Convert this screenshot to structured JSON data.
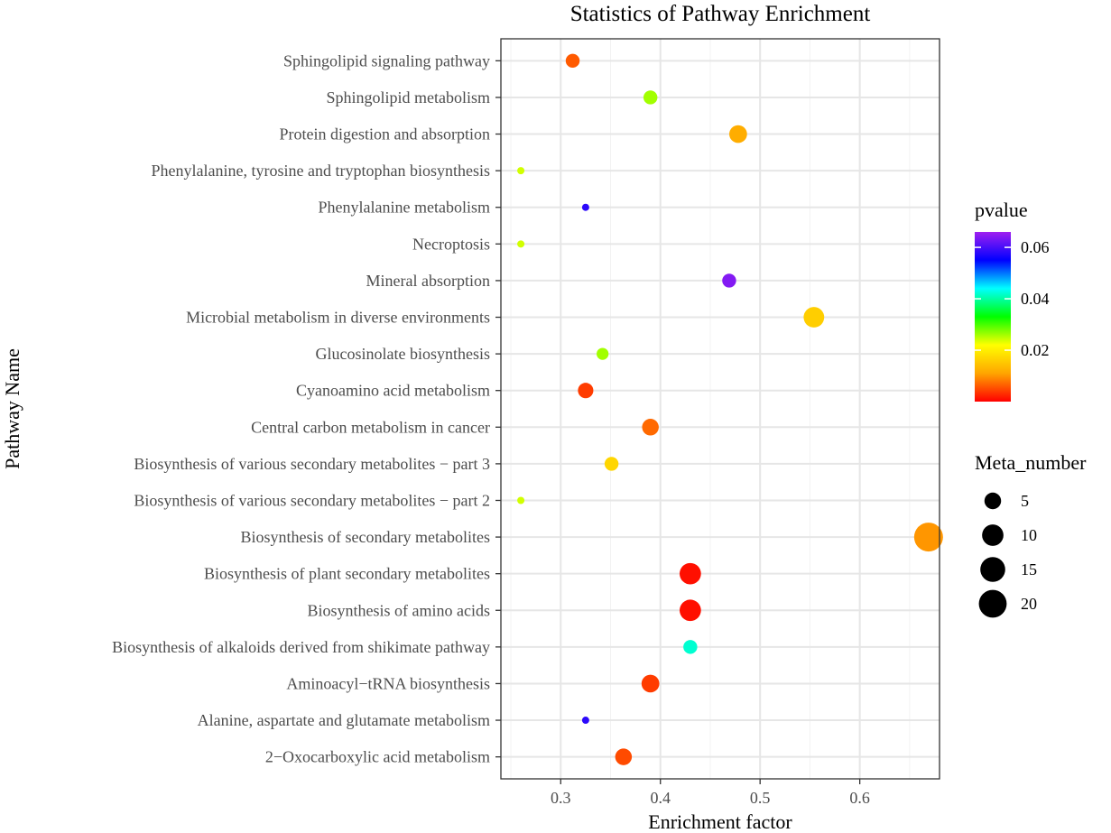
{
  "chart_data": {
    "type": "scatter",
    "title": "Statistics of Pathway Enrichment",
    "xlabel": "Enrichment factor",
    "ylabel": "Pathway Name",
    "xlim": [
      0.24,
      0.68
    ],
    "xticks": [
      0.3,
      0.4,
      0.5,
      0.6
    ],
    "xtick_labels": [
      "0.3",
      "0.4",
      "0.5",
      "0.6"
    ],
    "grid": true,
    "points": [
      {
        "pathway": "Sphingolipid signaling pathway",
        "enrichment": 0.312,
        "pvalue": 0.006,
        "meta_number": 3
      },
      {
        "pathway": "Sphingolipid metabolism",
        "enrichment": 0.39,
        "pvalue": 0.026,
        "meta_number": 3
      },
      {
        "pathway": "Protein digestion and absorption",
        "enrichment": 0.478,
        "pvalue": 0.012,
        "meta_number": 6
      },
      {
        "pathway": "Phenylalanine, tyrosine and tryptophan biosynthesis",
        "enrichment": 0.26,
        "pvalue": 0.024,
        "meta_number": 1
      },
      {
        "pathway": "Phenylalanine metabolism",
        "enrichment": 0.325,
        "pvalue": 0.058,
        "meta_number": 1
      },
      {
        "pathway": "Necroptosis",
        "enrichment": 0.26,
        "pvalue": 0.024,
        "meta_number": 1
      },
      {
        "pathway": "Mineral absorption",
        "enrichment": 0.469,
        "pvalue": 0.064,
        "meta_number": 3
      },
      {
        "pathway": "Microbial metabolism in diverse environments",
        "enrichment": 0.554,
        "pvalue": 0.016,
        "meta_number": 9
      },
      {
        "pathway": "Glucosinolate biosynthesis",
        "enrichment": 0.342,
        "pvalue": 0.026,
        "meta_number": 2
      },
      {
        "pathway": "Cyanoamino acid metabolism",
        "enrichment": 0.325,
        "pvalue": 0.004,
        "meta_number": 4
      },
      {
        "pathway": "Central carbon metabolism in cancer",
        "enrichment": 0.39,
        "pvalue": 0.007,
        "meta_number": 5
      },
      {
        "pathway": "Biosynthesis of various secondary metabolites − part 3",
        "enrichment": 0.351,
        "pvalue": 0.017,
        "meta_number": 3
      },
      {
        "pathway": "Biosynthesis of various secondary metabolites − part 2",
        "enrichment": 0.26,
        "pvalue": 0.024,
        "meta_number": 1
      },
      {
        "pathway": "Biosynthesis of secondary metabolites",
        "enrichment": 0.669,
        "pvalue": 0.01,
        "meta_number": 22
      },
      {
        "pathway": "Biosynthesis of plant secondary metabolites",
        "enrichment": 0.43,
        "pvalue": 0.001,
        "meta_number": 10
      },
      {
        "pathway": "Biosynthesis of amino acids",
        "enrichment": 0.43,
        "pvalue": 0.001,
        "meta_number": 10
      },
      {
        "pathway": "Biosynthesis of alkaloids derived from shikimate pathway",
        "enrichment": 0.43,
        "pvalue": 0.042,
        "meta_number": 3
      },
      {
        "pathway": "Aminoacyl−tRNA biosynthesis",
        "enrichment": 0.39,
        "pvalue": 0.004,
        "meta_number": 6
      },
      {
        "pathway": "Alanine, aspartate and glutamate metabolism",
        "enrichment": 0.325,
        "pvalue": 0.058,
        "meta_number": 1
      },
      {
        "pathway": "2−Oxocarboxylic acid metabolism",
        "enrichment": 0.363,
        "pvalue": 0.005,
        "meta_number": 5
      }
    ],
    "color_legend": {
      "title": "pvalue",
      "range": [
        0.0,
        0.066
      ],
      "ticks": [
        0.06,
        0.04,
        0.02
      ],
      "tick_labels": [
        "0.06",
        "0.04",
        "0.02"
      ],
      "colors_low_to_high": [
        "#ff0000",
        "#ffa500",
        "#ffff00",
        "#00ff00",
        "#00ffff",
        "#0000ff",
        "#a020f0"
      ]
    },
    "size_legend": {
      "title": "Meta_number",
      "values": [
        5,
        10,
        15,
        20
      ],
      "labels": [
        "5",
        "10",
        "15",
        "20"
      ],
      "point_color": "#000000"
    }
  }
}
